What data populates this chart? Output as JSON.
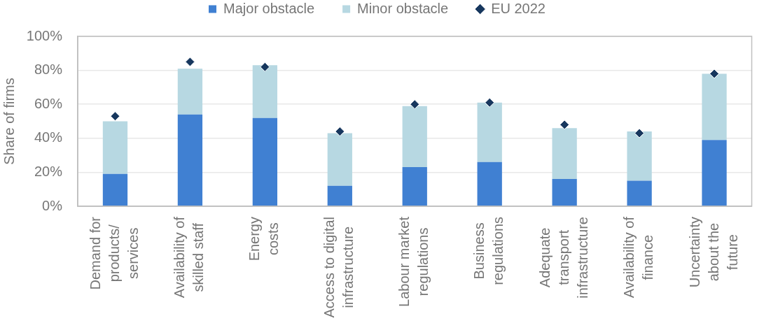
{
  "chart_data": {
    "type": "bar",
    "stacked": true,
    "ylabel": "Share of firms",
    "categories": [
      "Demand for\nproducts/\nservices",
      "Availability of\nskilled staff",
      "Energy\ncosts",
      "Access to digital\ninfrastructure",
      "Labour market\nregulations",
      "Business\nregulations",
      "Adequate\ntransport\ninfrastructure",
      "Availability of\nfinance",
      "Uncertainty\nabout the\nfuture"
    ],
    "series": [
      {
        "name": "Major obstacle",
        "color": "#4080d2",
        "values": [
          19,
          54,
          52,
          12,
          23,
          26,
          16,
          15,
          39
        ]
      },
      {
        "name": "Minor obstacle",
        "color": "#b7d8e2",
        "values": [
          31,
          27,
          31,
          31,
          36,
          35,
          30,
          29,
          39
        ]
      },
      {
        "name": "EU 2022",
        "type": "scatter",
        "color": "#17375e",
        "x": [
          "Demand for\nproducts/\nservices",
          "Availability of\nskilled staff",
          "Energy\ncosts",
          "Access to digital\ninfrastructure",
          "Labour market\nregulations",
          "Business\nregulations",
          "Adequate\ntransport\ninfrastructure",
          "Availability of\nfinance",
          "Uncertainty\nabout the\nfuture"
        ],
        "values": [
          53,
          85,
          82,
          44,
          60,
          61,
          48,
          43,
          78
        ]
      }
    ],
    "ylim": [
      0,
      100
    ],
    "yticks": [
      {
        "value": 0,
        "label": "0%"
      },
      {
        "value": 20,
        "label": "20%"
      },
      {
        "value": 40,
        "label": "40%"
      },
      {
        "value": 60,
        "label": "60%"
      },
      {
        "value": 80,
        "label": "80%"
      },
      {
        "value": 100,
        "label": "100%"
      }
    ],
    "grid": "y",
    "legend": "top",
    "marker": "diamond"
  }
}
